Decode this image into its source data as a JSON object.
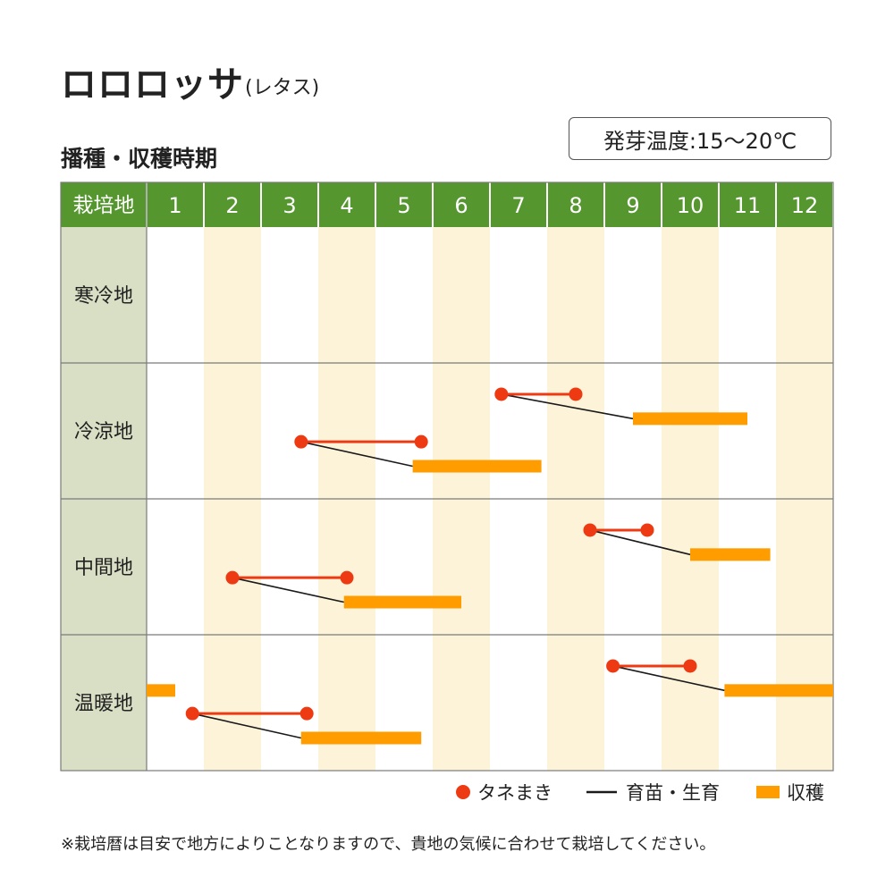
{
  "header": {
    "title": "ロロロッサ",
    "subtitle": "(レタス)",
    "section_title": "播種・収穫時期",
    "temperature": "発芽温度:15～20℃"
  },
  "legend": {
    "sowing": "タネまき",
    "nursery": "育苗・生育",
    "harvest": "収穫"
  },
  "note": "※栽培暦は目安で地方によりことなりますので、貴地の気候に合わせて栽培してください。",
  "colors": {
    "header_bg": "#55962f",
    "header_text": "#ffffff",
    "region_bg": "#d8dfc4",
    "stripe": "#fdf3d8",
    "sowing": "#ee3a12",
    "nursery": "#1a1a1a",
    "harvest": "#ff9c00",
    "grid": "#7a7a7a"
  },
  "chart_data": {
    "type": "gantt",
    "corner_label": "栽培地",
    "months": [
      "1",
      "2",
      "3",
      "4",
      "5",
      "6",
      "7",
      "8",
      "9",
      "10",
      "11",
      "12"
    ],
    "regions": [
      {
        "name": "寒冷地",
        "schedules": []
      },
      {
        "name": "冷涼地",
        "schedules": [
          {
            "sow": [
              7.2,
              8.5
            ],
            "harvest": [
              9.5,
              11.5
            ]
          },
          {
            "sow": [
              3.7,
              5.8
            ],
            "harvest": [
              5.65,
              7.9
            ]
          }
        ]
      },
      {
        "name": "中間地",
        "schedules": [
          {
            "sow": [
              8.75,
              9.75
            ],
            "harvest": [
              10.5,
              11.9
            ]
          },
          {
            "sow": [
              2.5,
              4.5
            ],
            "harvest": [
              4.45,
              6.5
            ]
          }
        ]
      },
      {
        "name": "温暖地",
        "schedules": [
          {
            "sow": [
              9.15,
              10.5
            ],
            "harvest": [
              11.1,
              13.0
            ]
          },
          {
            "sow": [
              1.8,
              3.8
            ],
            "harvest": [
              3.7,
              5.8
            ]
          },
          {
            "sow": null,
            "harvest": [
              1.0,
              1.5
            ]
          }
        ]
      }
    ]
  }
}
